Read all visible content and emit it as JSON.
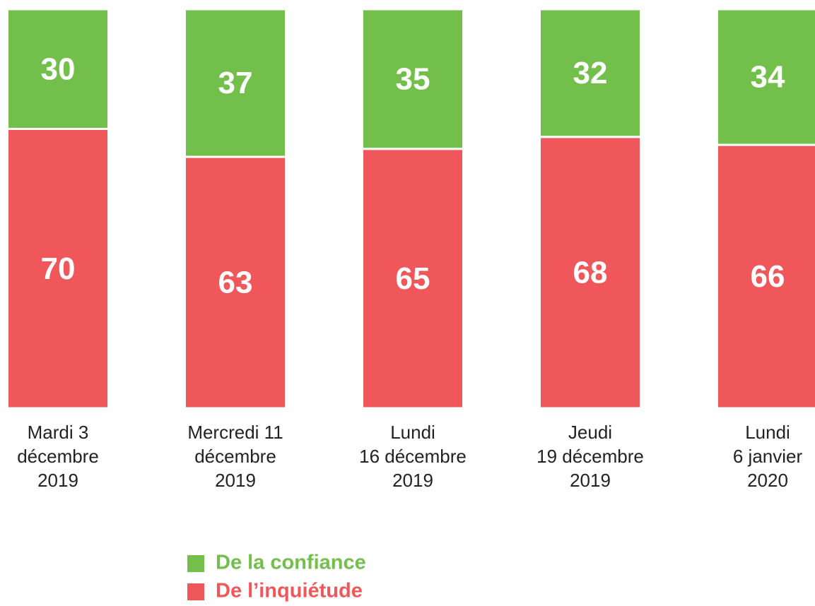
{
  "chart_data": {
    "type": "bar",
    "stacked": true,
    "categories": [
      [
        "Mardi 3",
        "décembre",
        "2019"
      ],
      [
        "Mercredi 11",
        "décembre",
        "2019"
      ],
      [
        "Lundi",
        "16 décembre",
        "2019"
      ],
      [
        "Jeudi",
        "19 décembre",
        "2019"
      ],
      [
        "Lundi",
        "6 janvier",
        "2020"
      ]
    ],
    "series": [
      {
        "name": "De la confiance",
        "color": "#72bf4b",
        "values": [
          30,
          37,
          35,
          32,
          34
        ]
      },
      {
        "name": "De l’inquiétude",
        "color": "#f0575b",
        "values": [
          70,
          63,
          65,
          68,
          66
        ]
      }
    ],
    "ylim": [
      0,
      100
    ]
  }
}
